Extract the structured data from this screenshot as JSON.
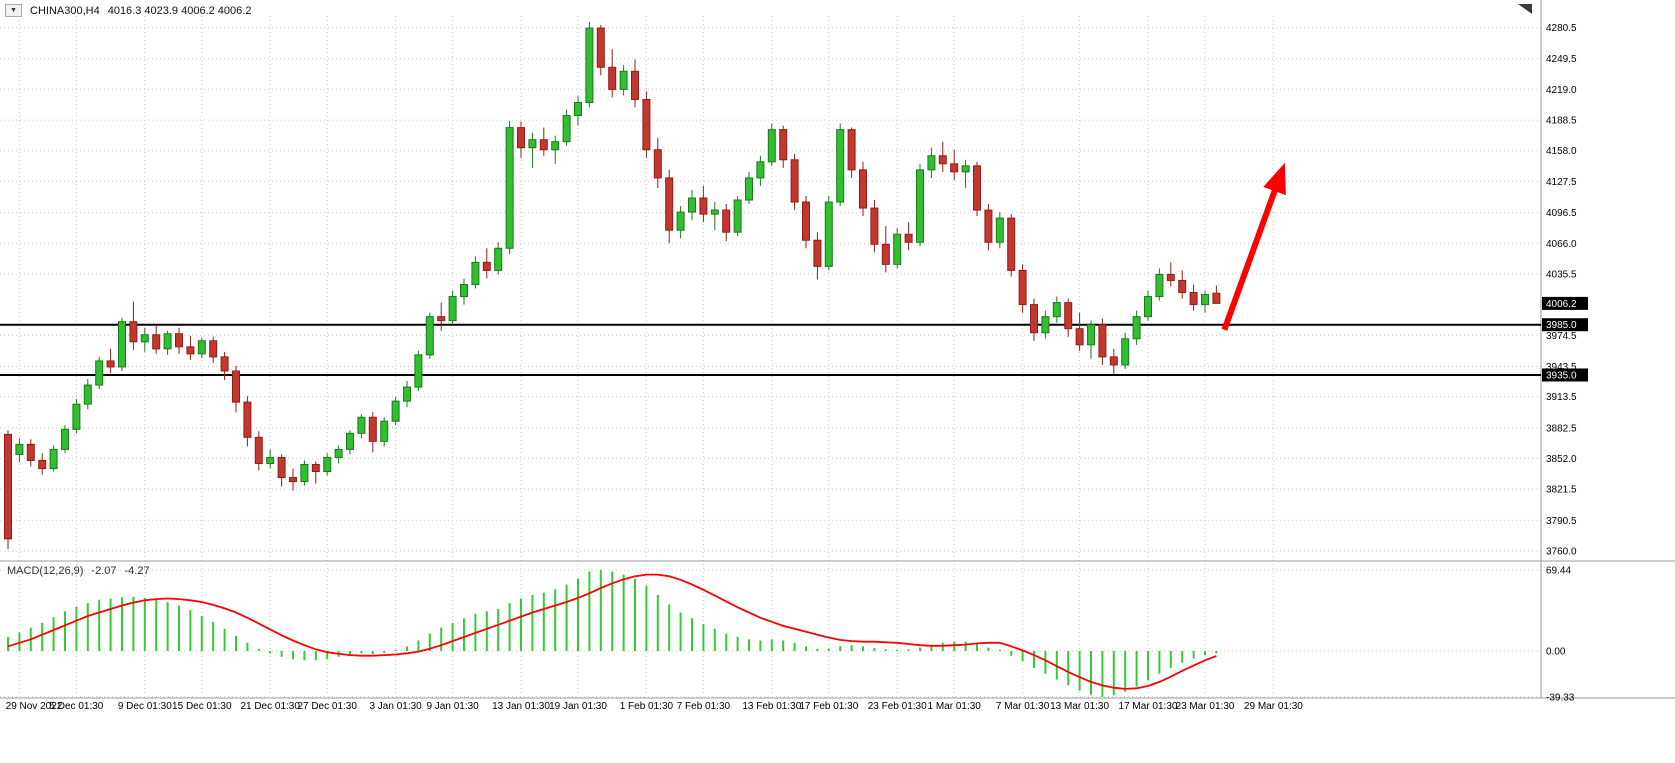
{
  "header": {
    "symbol_period": "CHINA300,H4",
    "ohlc": "4016.3 4023.9 4006.2 4006.2",
    "dropdown_icon": "▼"
  },
  "macd_panel": {
    "label": "MACD(12,26,9)",
    "value_main": "-2.07",
    "value_signal": "-4.27"
  },
  "colors": {
    "up": "#2FBF2F",
    "up_border": "#1B7A1B",
    "down": "#C3372E",
    "down_border": "#8F1F18",
    "macd_hist": "#33CC33",
    "signal": "#FF0000",
    "level_line": "#000000",
    "grid": "#C9C9C9",
    "arrow": "#FF0000",
    "badge_bg": "#000000",
    "badge_text": "#FFFFFF",
    "axis_text": "#000000"
  },
  "chart_data": {
    "type": "candlestick_with_macd",
    "symbol": "CHINA300",
    "timeframe": "H4",
    "last_ohlc": {
      "open": 4016.3,
      "high": 4023.9,
      "low": 4006.2,
      "close": 4006.2
    },
    "price_axis": {
      "range": [
        3753,
        4292
      ],
      "ticks": [
        4280.5,
        4249.5,
        4219.0,
        4188.5,
        4158.0,
        4127.5,
        4096.5,
        4066.0,
        4035.5,
        3974.5,
        3943.5,
        3913.5,
        3882.5,
        3852.0,
        3821.5,
        3790.5,
        3760.0
      ]
    },
    "levels": [
      {
        "value": 3985.0,
        "label": "3985.0"
      },
      {
        "value": 3935.0,
        "label": "3935.0"
      }
    ],
    "current_price": {
      "value": 4006.2,
      "label": "4006.2"
    },
    "candles": [
      [
        3876,
        3880,
        3762,
        3772
      ],
      [
        3856,
        3872,
        3848,
        3866
      ],
      [
        3866,
        3871,
        3844,
        3850
      ],
      [
        3850,
        3857,
        3836,
        3842
      ],
      [
        3842,
        3865,
        3839,
        3861
      ],
      [
        3861,
        3885,
        3857,
        3881
      ],
      [
        3881,
        3911,
        3877,
        3906
      ],
      [
        3906,
        3931,
        3901,
        3925
      ],
      [
        3925,
        3953,
        3921,
        3949
      ],
      [
        3949,
        3961,
        3937,
        3943
      ],
      [
        3943,
        3992,
        3939,
        3988
      ],
      [
        3988,
        4008,
        3960,
        3968
      ],
      [
        3968,
        3982,
        3958,
        3975
      ],
      [
        3975,
        3985,
        3956,
        3961
      ],
      [
        3961,
        3979,
        3955,
        3976
      ],
      [
        3976,
        3982,
        3956,
        3963
      ],
      [
        3963,
        3974,
        3950,
        3956
      ],
      [
        3956,
        3972,
        3952,
        3969
      ],
      [
        3969,
        3973,
        3947,
        3953
      ],
      [
        3953,
        3958,
        3930,
        3939
      ],
      [
        3939,
        3944,
        3898,
        3908
      ],
      [
        3908,
        3914,
        3864,
        3873
      ],
      [
        3873,
        3879,
        3840,
        3847
      ],
      [
        3847,
        3861,
        3842,
        3853
      ],
      [
        3853,
        3856,
        3824,
        3833
      ],
      [
        3833,
        3842,
        3820,
        3829
      ],
      [
        3829,
        3850,
        3825,
        3846
      ],
      [
        3846,
        3849,
        3827,
        3839
      ],
      [
        3839,
        3857,
        3835,
        3853
      ],
      [
        3853,
        3865,
        3847,
        3861
      ],
      [
        3861,
        3880,
        3856,
        3877
      ],
      [
        3877,
        3896,
        3872,
        3893
      ],
      [
        3893,
        3898,
        3858,
        3869
      ],
      [
        3869,
        3893,
        3864,
        3889
      ],
      [
        3889,
        3913,
        3885,
        3909
      ],
      [
        3909,
        3929,
        3903,
        3923
      ],
      [
        3923,
        3959,
        3919,
        3955
      ],
      [
        3955,
        3997,
        3951,
        3993
      ],
      [
        3993,
        4007,
        3979,
        3989
      ],
      [
        3989,
        4019,
        3985,
        4013
      ],
      [
        4013,
        4031,
        4005,
        4025
      ],
      [
        4025,
        4053,
        4021,
        4047
      ],
      [
        4047,
        4061,
        4031,
        4039
      ],
      [
        4039,
        4067,
        4035,
        4061
      ],
      [
        4061,
        4188,
        4055,
        4181
      ],
      [
        4181,
        4187,
        4151,
        4161
      ],
      [
        4161,
        4176,
        4141,
        4169
      ],
      [
        4169,
        4181,
        4153,
        4159
      ],
      [
        4159,
        4173,
        4145,
        4167
      ],
      [
        4167,
        4199,
        4163,
        4193
      ],
      [
        4193,
        4213,
        4183,
        4206
      ],
      [
        4206,
        4286,
        4201,
        4280
      ],
      [
        4280,
        4283,
        4233,
        4241
      ],
      [
        4241,
        4259,
        4211,
        4219
      ],
      [
        4219,
        4243,
        4213,
        4237
      ],
      [
        4237,
        4249,
        4201,
        4209
      ],
      [
        4209,
        4217,
        4151,
        4159
      ],
      [
        4159,
        4171,
        4121,
        4131
      ],
      [
        4131,
        4139,
        4066,
        4079
      ],
      [
        4079,
        4103,
        4071,
        4097
      ],
      [
        4097,
        4119,
        4089,
        4111
      ],
      [
        4111,
        4123,
        4087,
        4095
      ],
      [
        4095,
        4107,
        4079,
        4099
      ],
      [
        4099,
        4105,
        4068,
        4077
      ],
      [
        4077,
        4113,
        4073,
        4109
      ],
      [
        4109,
        4137,
        4105,
        4131
      ],
      [
        4131,
        4153,
        4123,
        4147
      ],
      [
        4147,
        4185,
        4143,
        4179
      ],
      [
        4179,
        4183,
        4141,
        4149
      ],
      [
        4149,
        4155,
        4099,
        4107
      ],
      [
        4107,
        4113,
        4061,
        4069
      ],
      [
        4069,
        4077,
        4030,
        4043
      ],
      [
        4043,
        4113,
        4039,
        4107
      ],
      [
        4107,
        4185,
        4103,
        4179
      ],
      [
        4179,
        4181,
        4131,
        4139
      ],
      [
        4139,
        4147,
        4093,
        4101
      ],
      [
        4101,
        4109,
        4057,
        4065
      ],
      [
        4065,
        4083,
        4037,
        4045
      ],
      [
        4045,
        4081,
        4041,
        4075
      ],
      [
        4075,
        4087,
        4059,
        4067
      ],
      [
        4067,
        4145,
        4063,
        4139
      ],
      [
        4139,
        4161,
        4131,
        4153
      ],
      [
        4153,
        4167,
        4137,
        4145
      ],
      [
        4145,
        4159,
        4129,
        4137
      ],
      [
        4137,
        4149,
        4121,
        4143
      ],
      [
        4143,
        4147,
        4093,
        4099
      ],
      [
        4099,
        4105,
        4059,
        4067
      ],
      [
        4067,
        4097,
        4061,
        4091
      ],
      [
        4091,
        4095,
        4033,
        4039
      ],
      [
        4039,
        4045,
        3997,
        4005
      ],
      [
        4005,
        4011,
        3969,
        3977
      ],
      [
        3977,
        3999,
        3971,
        3993
      ],
      [
        3993,
        4013,
        3987,
        4007
      ],
      [
        4007,
        4011,
        3973,
        3981
      ],
      [
        3981,
        3997,
        3959,
        3965
      ],
      [
        3965,
        3989,
        3951,
        3985
      ],
      [
        3985,
        3991,
        3945,
        3953
      ],
      [
        3953,
        3961,
        3936,
        3945
      ],
      [
        3945,
        3977,
        3941,
        3971
      ],
      [
        3971,
        3999,
        3965,
        3993
      ],
      [
        3993,
        4019,
        3989,
        4013
      ],
      [
        4013,
        4041,
        4009,
        4035
      ],
      [
        4035,
        4047,
        4023,
        4029
      ],
      [
        4029,
        4039,
        4011,
        4017
      ],
      [
        4017,
        4025,
        3999,
        4005
      ],
      [
        4005,
        4019,
        3997,
        4015
      ],
      [
        4016.3,
        4023.9,
        4006.2,
        4006.2
      ]
    ],
    "time_labels": [
      {
        "index": 1,
        "label": "29 Nov 2022"
      },
      {
        "index": 6,
        "label": "5 Dec 01:30"
      },
      {
        "index": 12,
        "label": "9 Dec 01:30"
      },
      {
        "index": 17,
        "label": "15 Dec 01:30"
      },
      {
        "index": 23,
        "label": "21 Dec 01:30"
      },
      {
        "index": 28,
        "label": "27 Dec 01:30"
      },
      {
        "index": 34,
        "label": "3 Jan 01:30"
      },
      {
        "index": 39,
        "label": "9 Jan 01:30"
      },
      {
        "index": 45,
        "label": "13 Jan 01:30"
      },
      {
        "index": 50,
        "label": "19 Jan 01:30"
      },
      {
        "index": 56,
        "label": "1 Feb 01:30"
      },
      {
        "index": 61,
        "label": "7 Feb 01:30"
      },
      {
        "index": 67,
        "label": "13 Feb 01:30"
      },
      {
        "index": 72,
        "label": "17 Feb 01:30"
      },
      {
        "index": 78,
        "label": "23 Feb 01:30"
      },
      {
        "index": 83,
        "label": "1 Mar 01:30"
      },
      {
        "index": 89,
        "label": "7 Mar 01:30"
      },
      {
        "index": 94,
        "label": "13 Mar 01:30"
      },
      {
        "index": 100,
        "label": "17 Mar 01:30"
      },
      {
        "index": 105,
        "label": "23 Mar 01:30"
      },
      {
        "index": 111,
        "label": "29 Mar 01:30"
      }
    ],
    "macd": {
      "params": "12,26,9",
      "axis": [
        {
          "value": 69.44,
          "label": "69.44"
        },
        {
          "value": 0,
          "label": "0.00"
        },
        {
          "value": -39.33,
          "label": "-39.33"
        }
      ],
      "range": [
        -39.33,
        69.44
      ],
      "histogram": [
        12,
        16,
        20,
        24,
        29,
        34,
        38,
        41,
        44,
        45,
        46,
        46.5,
        45.5,
        44,
        42,
        39,
        35,
        30,
        25,
        19,
        13,
        7,
        2,
        -2,
        -5,
        -7,
        -8,
        -8,
        -7,
        -5,
        -3,
        -2,
        -2.5,
        -1.5,
        1,
        4,
        9,
        15,
        20,
        24,
        28,
        32,
        34,
        36,
        41,
        45,
        48,
        50,
        53,
        57,
        62,
        68,
        69.4,
        68,
        65.5,
        62,
        56,
        48,
        40,
        33,
        28,
        23,
        19,
        15,
        12,
        10,
        9,
        10,
        9,
        7,
        4,
        2,
        2,
        4,
        5,
        4,
        2.5,
        1.5,
        1,
        1.5,
        3,
        5,
        7,
        8,
        8,
        6,
        3,
        1,
        -4,
        -9,
        -14.5,
        -19.5,
        -24.5,
        -29.5,
        -34,
        -37.5,
        -39.3,
        -38,
        -35,
        -30.5,
        -25,
        -19.5,
        -14.5,
        -10,
        -6.5,
        -3.5,
        -2.07
      ],
      "signal": [
        4,
        7,
        10,
        14,
        18,
        22,
        26,
        30,
        33,
        36,
        39,
        41.5,
        43.5,
        44.5,
        45,
        44.5,
        43.5,
        42,
        39.5,
        36.5,
        33,
        28.5,
        23.5,
        18.5,
        13.5,
        9,
        5,
        1.5,
        -1,
        -2.5,
        -3.5,
        -4,
        -4,
        -3.5,
        -3,
        -2,
        -0.5,
        2,
        5,
        8.5,
        12,
        15.5,
        19,
        22.5,
        26,
        29.5,
        33,
        36,
        39,
        42,
        45.5,
        49.5,
        54,
        58,
        61.5,
        64,
        65.5,
        65.5,
        64,
        61,
        57,
        52.5,
        47.5,
        42.5,
        37.5,
        33,
        28.5,
        25,
        21.5,
        19,
        16.5,
        14,
        11.5,
        9.5,
        8.5,
        8,
        8,
        7.5,
        7,
        6,
        5,
        4.5,
        4.5,
        5,
        5.5,
        6.5,
        7,
        7,
        4,
        0.5,
        -3.5,
        -8,
        -13,
        -18,
        -22.5,
        -26.5,
        -29.5,
        -31.5,
        -32.5,
        -32,
        -30,
        -26.5,
        -22,
        -17,
        -12.5,
        -8,
        -4.27
      ]
    },
    "annotations": [
      {
        "type": "arrow",
        "from": {
          "index": 106.7,
          "price": 3980
        },
        "to": {
          "index": 112,
          "price": 4146
        },
        "color": "#FF0000"
      }
    ]
  }
}
